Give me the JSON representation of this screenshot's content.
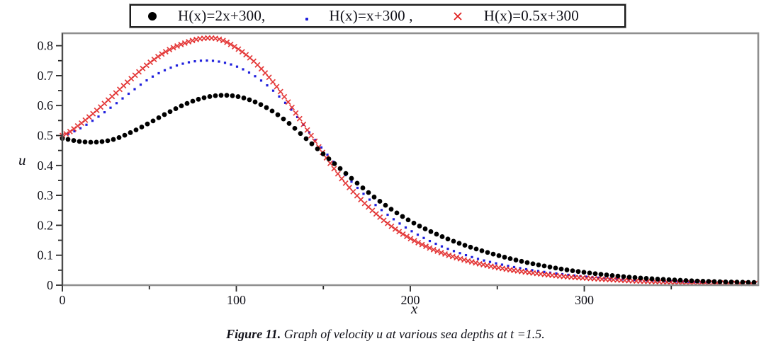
{
  "figure": {
    "caption_label": "Figure 11.",
    "caption_text": " Graph of velocity u at various sea depths at t =1.5."
  },
  "legend": {
    "items": [
      {
        "marker": "filled-circle-icon",
        "color": "#000000",
        "label": "H(x)=2x+300,"
      },
      {
        "marker": "dot-icon",
        "color": "#2020dd",
        "label": "H(x)=x+300 ,"
      },
      {
        "marker": "x-cross-icon",
        "color": "#e02020",
        "label": "H(x)=0.5x+300"
      }
    ]
  },
  "chart_data": {
    "type": "scatter",
    "title": "",
    "xlabel": "x",
    "ylabel": "u",
    "xlim": [
      0,
      400
    ],
    "ylim": [
      0,
      0.84
    ],
    "grid": false,
    "legend_position": "top-outside",
    "x_major_ticks": [
      0,
      100,
      200,
      300
    ],
    "x_minor_ticks": [
      50,
      150,
      250,
      350
    ],
    "y_major_ticks": [
      0,
      0.1,
      0.2,
      0.3,
      0.4,
      0.5,
      0.6,
      0.7,
      0.8
    ],
    "y_major_tick_labels": [
      "0",
      "0.1",
      "0.2",
      "0.3",
      "0.4",
      "0.5",
      "0.6",
      "0.7",
      "0.8"
    ],
    "y_minor_ticks": [
      0.05,
      0.15,
      0.25,
      0.35,
      0.45,
      0.55,
      0.65,
      0.75
    ],
    "x": [
      0,
      10,
      20,
      30,
      40,
      50,
      60,
      70,
      80,
      90,
      100,
      110,
      120,
      130,
      140,
      150,
      160,
      170,
      180,
      190,
      200,
      210,
      220,
      230,
      240,
      250,
      260,
      270,
      280,
      290,
      300,
      310,
      320,
      330,
      340,
      350,
      360,
      370,
      380,
      390,
      400
    ],
    "series": [
      {
        "name": "H(x)=2x+300",
        "marker": "filled-circle",
        "color": "#000000",
        "values": [
          0.49,
          0.48,
          0.478,
          0.488,
          0.512,
          0.542,
          0.574,
          0.603,
          0.624,
          0.634,
          0.631,
          0.614,
          0.584,
          0.542,
          0.49,
          0.438,
          0.388,
          0.338,
          0.291,
          0.25,
          0.214,
          0.184,
          0.158,
          0.136,
          0.117,
          0.1,
          0.085,
          0.072,
          0.061,
          0.051,
          0.043,
          0.036,
          0.03,
          0.025,
          0.021,
          0.018,
          0.015,
          0.013,
          0.011,
          0.01,
          0.009
        ]
      },
      {
        "name": "H(x)=x+300",
        "marker": "dot",
        "color": "#2020dd",
        "values": [
          0.5,
          0.523,
          0.56,
          0.603,
          0.648,
          0.69,
          0.721,
          0.741,
          0.75,
          0.747,
          0.731,
          0.701,
          0.656,
          0.597,
          0.525,
          0.452,
          0.385,
          0.323,
          0.268,
          0.222,
          0.183,
          0.151,
          0.125,
          0.104,
          0.086,
          0.072,
          0.06,
          0.05,
          0.042,
          0.035,
          0.029,
          0.024,
          0.02,
          0.017,
          0.015,
          0.013,
          0.011,
          0.01,
          0.009,
          0.008,
          0.007
        ]
      },
      {
        "name": "H(x)=0.5x+300",
        "marker": "x-cross",
        "color": "#e02020",
        "values": [
          0.5,
          0.537,
          0.585,
          0.638,
          0.692,
          0.742,
          0.782,
          0.808,
          0.824,
          0.822,
          0.793,
          0.748,
          0.686,
          0.61,
          0.525,
          0.44,
          0.36,
          0.295,
          0.24,
          0.193,
          0.156,
          0.127,
          0.104,
          0.086,
          0.071,
          0.059,
          0.049,
          0.041,
          0.034,
          0.028,
          0.024,
          0.02,
          0.017,
          0.014,
          0.012,
          0.01,
          0.009,
          0.008,
          0.007,
          0.006,
          0.006
        ]
      }
    ]
  }
}
